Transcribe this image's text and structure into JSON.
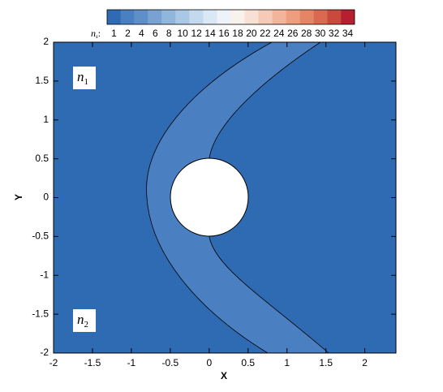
{
  "chart_data": {
    "type": "contour",
    "xlabel": "X",
    "ylabel": "Y",
    "xlim": [
      -2,
      2.4
    ],
    "ylim": [
      -2,
      2
    ],
    "xticks": [
      -2,
      -1.5,
      -1,
      -0.5,
      0,
      0.5,
      1,
      1.5,
      2
    ],
    "yticks": [
      -2,
      -1.5,
      -1,
      -0.5,
      0,
      0.5,
      1,
      1.5,
      2
    ],
    "colorbar": {
      "label": "n",
      "label_subscript": "s",
      "levels": [
        1,
        2,
        4,
        6,
        8,
        10,
        12,
        14,
        16,
        18,
        20,
        22,
        24,
        26,
        28,
        30,
        32,
        34
      ],
      "colors": [
        "#2f6bb3",
        "#4a80c1",
        "#5f8fc8",
        "#77a2d1",
        "#90b6dc",
        "#a9c8e5",
        "#c2d9ee",
        "#dae8f5",
        "#eef3f9",
        "#f9f1ec",
        "#f8e0d4",
        "#f5cbb8",
        "#f2b59b",
        "#ee9e7f",
        "#e68565",
        "#d9694f",
        "#c94a3d",
        "#b51f2e"
      ]
    },
    "annotations": [
      {
        "text": "n",
        "subscript": "1"
      },
      {
        "text": "n",
        "subscript": "2"
      }
    ]
  }
}
